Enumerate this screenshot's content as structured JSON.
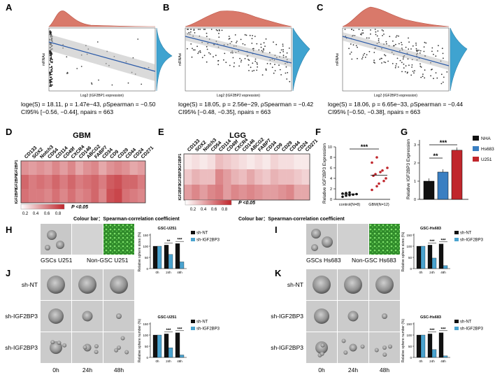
{
  "panels": {
    "A": "A",
    "B": "B",
    "C": "C",
    "D": "D",
    "E": "E",
    "F": "F",
    "G": "G",
    "H": "H",
    "I": "I",
    "J": "J",
    "K": "K"
  },
  "scatter": [
    {
      "xlabel": "Log2 (IGF2BP1 expression)",
      "ylabel": "mRNAsi",
      "stat_line1": "loge(S) = 18.11,  p = 1.47e−43,  ρSpearman = −0.50",
      "stat_line2": "CI95% [−0.56, −0.44],  npairs = 663"
    },
    {
      "xlabel": "Log2 (IGF2BP2 expression)",
      "ylabel": "mRNAsi",
      "stat_line1": "loge(S) = 18.05,  p = 2.56e−29,  ρSpearman = −0.42",
      "stat_line2": "CI95% [−0.48, −0.35],  npairs = 663"
    },
    {
      "xlabel": "Log2 (IGF2BP3 expression)",
      "ylabel": "mRNAsi",
      "stat_line1": "loge(S) = 18.06,  p = 6.65e−33,  ρSpearman = −0.44",
      "stat_line2": "CI95% [−0.50, −0.38],  npairs = 663"
    }
  ],
  "heatmaps": {
    "gbm_title": "GBM",
    "lgg_title": "LGG",
    "columns": [
      "CD133",
      "SOX2",
      "Notch3",
      "CD54",
      "CD114",
      "CD49f",
      "CXCR4",
      "CD146",
      "ABCG2",
      "FABP7",
      "CD34",
      "CD9",
      "CD29",
      "CD44",
      "CD24",
      "CD271"
    ],
    "rows": [
      "IGF2BP1",
      "IGF2BP2",
      "IGF2BP3"
    ],
    "scale_ticks": [
      "0.2",
      "0.4",
      "0.6",
      "0.8"
    ],
    "pvalue": "P <0.05",
    "colour_bar_caption": "Colour bar：Spearman-correlation coefficient",
    "gbm_values": [
      [
        0.5,
        0.45,
        0.5,
        0.45,
        0.55,
        0.45,
        0.55,
        0.4,
        0.5,
        0.55,
        0.4,
        0.5,
        0.55,
        0.5,
        0.4,
        0.45
      ],
      [
        0.7,
        0.6,
        0.65,
        0.6,
        0.7,
        0.6,
        0.7,
        0.6,
        0.65,
        0.7,
        0.6,
        0.75,
        0.8,
        0.7,
        0.7,
        0.6
      ],
      [
        0.65,
        0.6,
        0.6,
        0.55,
        0.65,
        0.55,
        0.65,
        0.55,
        0.6,
        0.7,
        0.55,
        0.8,
        0.85,
        0.65,
        0.6,
        0.55
      ]
    ],
    "lgg_values": [
      [
        0.1,
        0.15,
        0.1,
        0.15,
        0.3,
        0.25,
        0.2,
        0.15,
        0.1,
        0.15,
        0.1,
        0.2,
        0.15,
        0.15,
        0.1,
        0.1
      ],
      [
        0.25,
        0.35,
        0.3,
        0.3,
        0.55,
        0.45,
        0.35,
        0.3,
        0.4,
        0.3,
        0.25,
        0.35,
        0.3,
        0.3,
        0.25,
        0.2
      ],
      [
        0.45,
        0.55,
        0.45,
        0.55,
        0.6,
        0.45,
        0.55,
        0.5,
        0.55,
        0.5,
        0.45,
        0.45,
        0.5,
        0.55,
        0.4,
        0.4
      ]
    ]
  },
  "chart_data": [
    {
      "type": "scatter",
      "title": "Relative IGF2BP3 Expression",
      "ylabel": "Relative IGF2BP3 Expression",
      "ylim": [
        0,
        10
      ],
      "yticks": [
        "0",
        "2",
        "4",
        "6",
        "8",
        "10"
      ],
      "categories": [
        "control(N=8)",
        "GBM(N=12)"
      ],
      "series": [
        {
          "name": "control(N=8)",
          "values": [
            0.5,
            0.7,
            0.8,
            0.9,
            1.0,
            1.1,
            1.2,
            1.3
          ],
          "mean": 1.0
        },
        {
          "name": "GBM(N=12)",
          "values": [
            1.8,
            2.5,
            3.0,
            3.5,
            4.0,
            4.5,
            4.8,
            5.2,
            5.5,
            6.0,
            7.0,
            8.0
          ],
          "mean": 4.6
        }
      ],
      "significance": "***"
    },
    {
      "type": "bar",
      "ylabel": "Relative IGF2BP3 Expression",
      "ylim": [
        0,
        3
      ],
      "yticks": [
        "0",
        "1",
        "2",
        "3"
      ],
      "categories": [
        "NHA",
        "Hs683",
        "U251"
      ],
      "values": [
        1.0,
        1.5,
        2.7
      ],
      "colors": [
        "#111111",
        "#3a7fc2",
        "#c0262c"
      ],
      "significance": [
        "**",
        "***"
      ]
    },
    {
      "type": "bar",
      "title": "GSC-U251",
      "ylabel": "Relative sphere sizes (%)",
      "ylim": [
        0,
        150
      ],
      "yticks": [
        "0",
        "50",
        "100",
        "150"
      ],
      "categories": [
        "0h",
        "24h",
        "48h"
      ],
      "series": [
        {
          "name": "sh-NT",
          "values": [
            100,
            105,
            112
          ]
        },
        {
          "name": "sh-IGF2BP3",
          "values": [
            100,
            63,
            30
          ]
        }
      ],
      "significance": [
        "**",
        "***"
      ]
    },
    {
      "type": "bar",
      "title": "GSC-Hs683",
      "ylabel": "Relative sphere sizes (%)",
      "ylim": [
        0,
        150
      ],
      "yticks": [
        "0",
        "50",
        "100",
        "150"
      ],
      "categories": [
        "0h",
        "24h",
        "48h"
      ],
      "series": [
        {
          "name": "sh-NT",
          "values": [
            100,
            105,
            110
          ]
        },
        {
          "name": "sh-IGF2BP3",
          "values": [
            100,
            47,
            13
          ]
        }
      ],
      "significance": [
        "***",
        "***"
      ]
    },
    {
      "type": "bar",
      "title": "GSC-U251",
      "ylabel": "Relative sphere number (%)",
      "ylim": [
        0,
        150
      ],
      "yticks": [
        "0",
        "50",
        "100",
        "150"
      ],
      "categories": [
        "0h",
        "24h",
        "48h"
      ],
      "series": [
        {
          "name": "sh-NT",
          "values": [
            100,
            105,
            110
          ]
        },
        {
          "name": "sh-IGF2BP3",
          "values": [
            100,
            43,
            11
          ]
        }
      ],
      "significance": [
        "***",
        "***"
      ]
    },
    {
      "type": "bar",
      "title": "GSC-Hs683",
      "ylabel": "Relative sphere number (%)",
      "ylim": [
        0,
        150
      ],
      "yticks": [
        "0",
        "50",
        "100",
        "150"
      ],
      "categories": [
        "0h",
        "24h",
        "48h"
      ],
      "series": [
        {
          "name": "sh-NT",
          "values": [
            100,
            105,
            110
          ]
        },
        {
          "name": "sh-IGF2BP3",
          "values": [
            100,
            35,
            7
          ]
        }
      ],
      "significance": [
        "***",
        "***"
      ]
    }
  ],
  "bar_series_names": [
    "sh-NT",
    "sh-IGF2BP3"
  ],
  "bar_colors": {
    "sh_nt": "#111111",
    "sh_igf": "#4aa3cf"
  },
  "micro": {
    "h_captions": [
      "GSCs U251",
      "Non-GSC U251"
    ],
    "i_captions": [
      "GSCs Hs683",
      "Non-GSC Hs683"
    ],
    "row_labels": [
      "sh-NT",
      "sh-IGF2BP3",
      "sh-IGF2BP3"
    ],
    "time_labels": [
      "0h",
      "24h",
      "48h"
    ]
  },
  "colors": {
    "heat_low": "#ffffff",
    "heat_high": "#c0262c",
    "density": "#d9796a",
    "density_right": "#3fa3d0"
  }
}
